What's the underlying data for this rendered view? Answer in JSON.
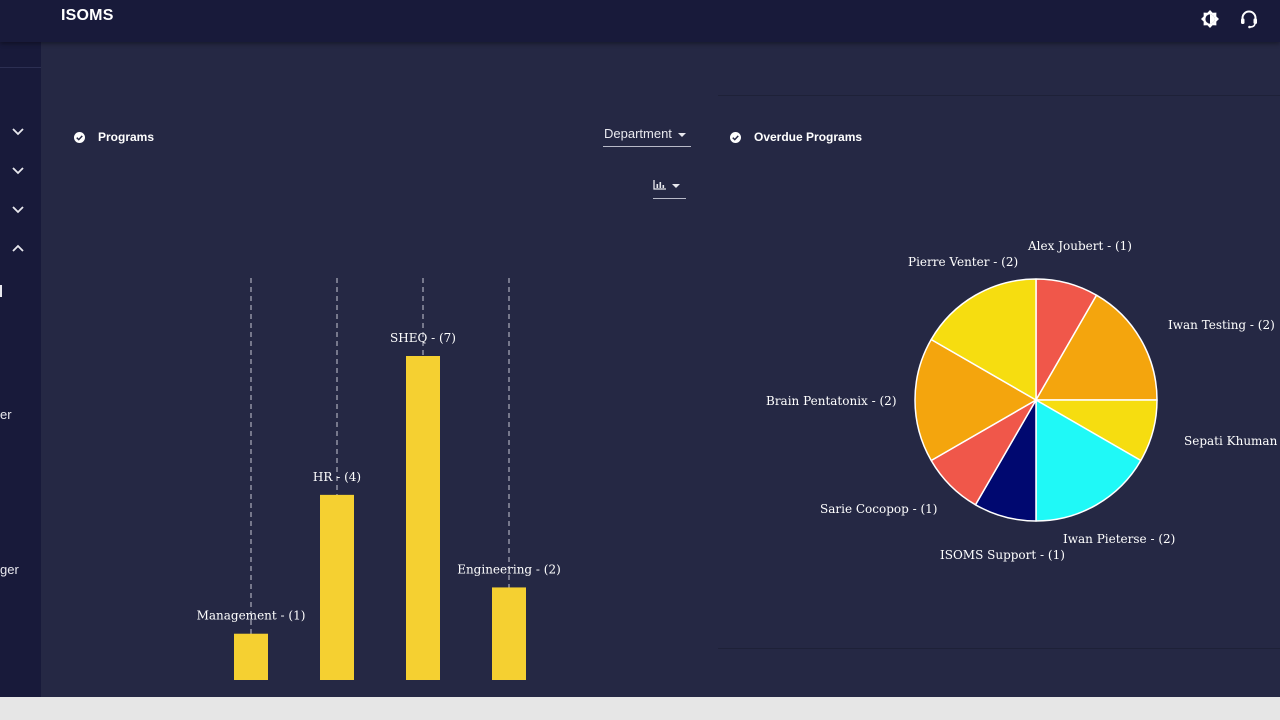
{
  "app": {
    "title": "ISOMS"
  },
  "sidebar": {
    "text_fragments": [
      "er",
      "ger"
    ]
  },
  "programs": {
    "title": "Programs",
    "group_by": "Department",
    "chart_data": {
      "type": "bar",
      "categories": [
        "Management",
        "HR",
        "SHEQ",
        "Engineering"
      ],
      "values": [
        1,
        4,
        7,
        2
      ],
      "data_labels": [
        "Management - (1)",
        "HR - (4)",
        "SHEQ - (7)",
        "Engineering - (2)"
      ],
      "ylim": [
        0,
        7
      ],
      "grid": false,
      "legend": "none"
    },
    "bar_color": "#f5d031"
  },
  "overdue": {
    "title": "Overdue Programs",
    "chart_data": {
      "type": "pie",
      "categories": [
        "Alex Joubert",
        "Iwan Testing",
        "Sepati Khumane",
        "Iwan Pieterse",
        "ISOMS Support",
        "Sarie Cocopop",
        "Brain Pentatonix",
        "Pierre Venter"
      ],
      "values": [
        1,
        2,
        1,
        2,
        1,
        1,
        2,
        2
      ],
      "data_labels": [
        "Alex Joubert - (1)",
        "Iwan Testing - (2)",
        "Sepati Khumane -",
        "Iwan Pieterse - (2)",
        "ISOMS Support - (1)",
        "Sarie Cocopop - (1)",
        "Brain Pentatonix - (2)",
        "Pierre Venter - (2)"
      ],
      "colors": [
        "#f0574a",
        "#f4a50d",
        "#f6dd10",
        "#1ff9f7",
        "#000870",
        "#f0574a",
        "#f4a50d",
        "#f6dd10"
      ],
      "legend": "none"
    }
  }
}
